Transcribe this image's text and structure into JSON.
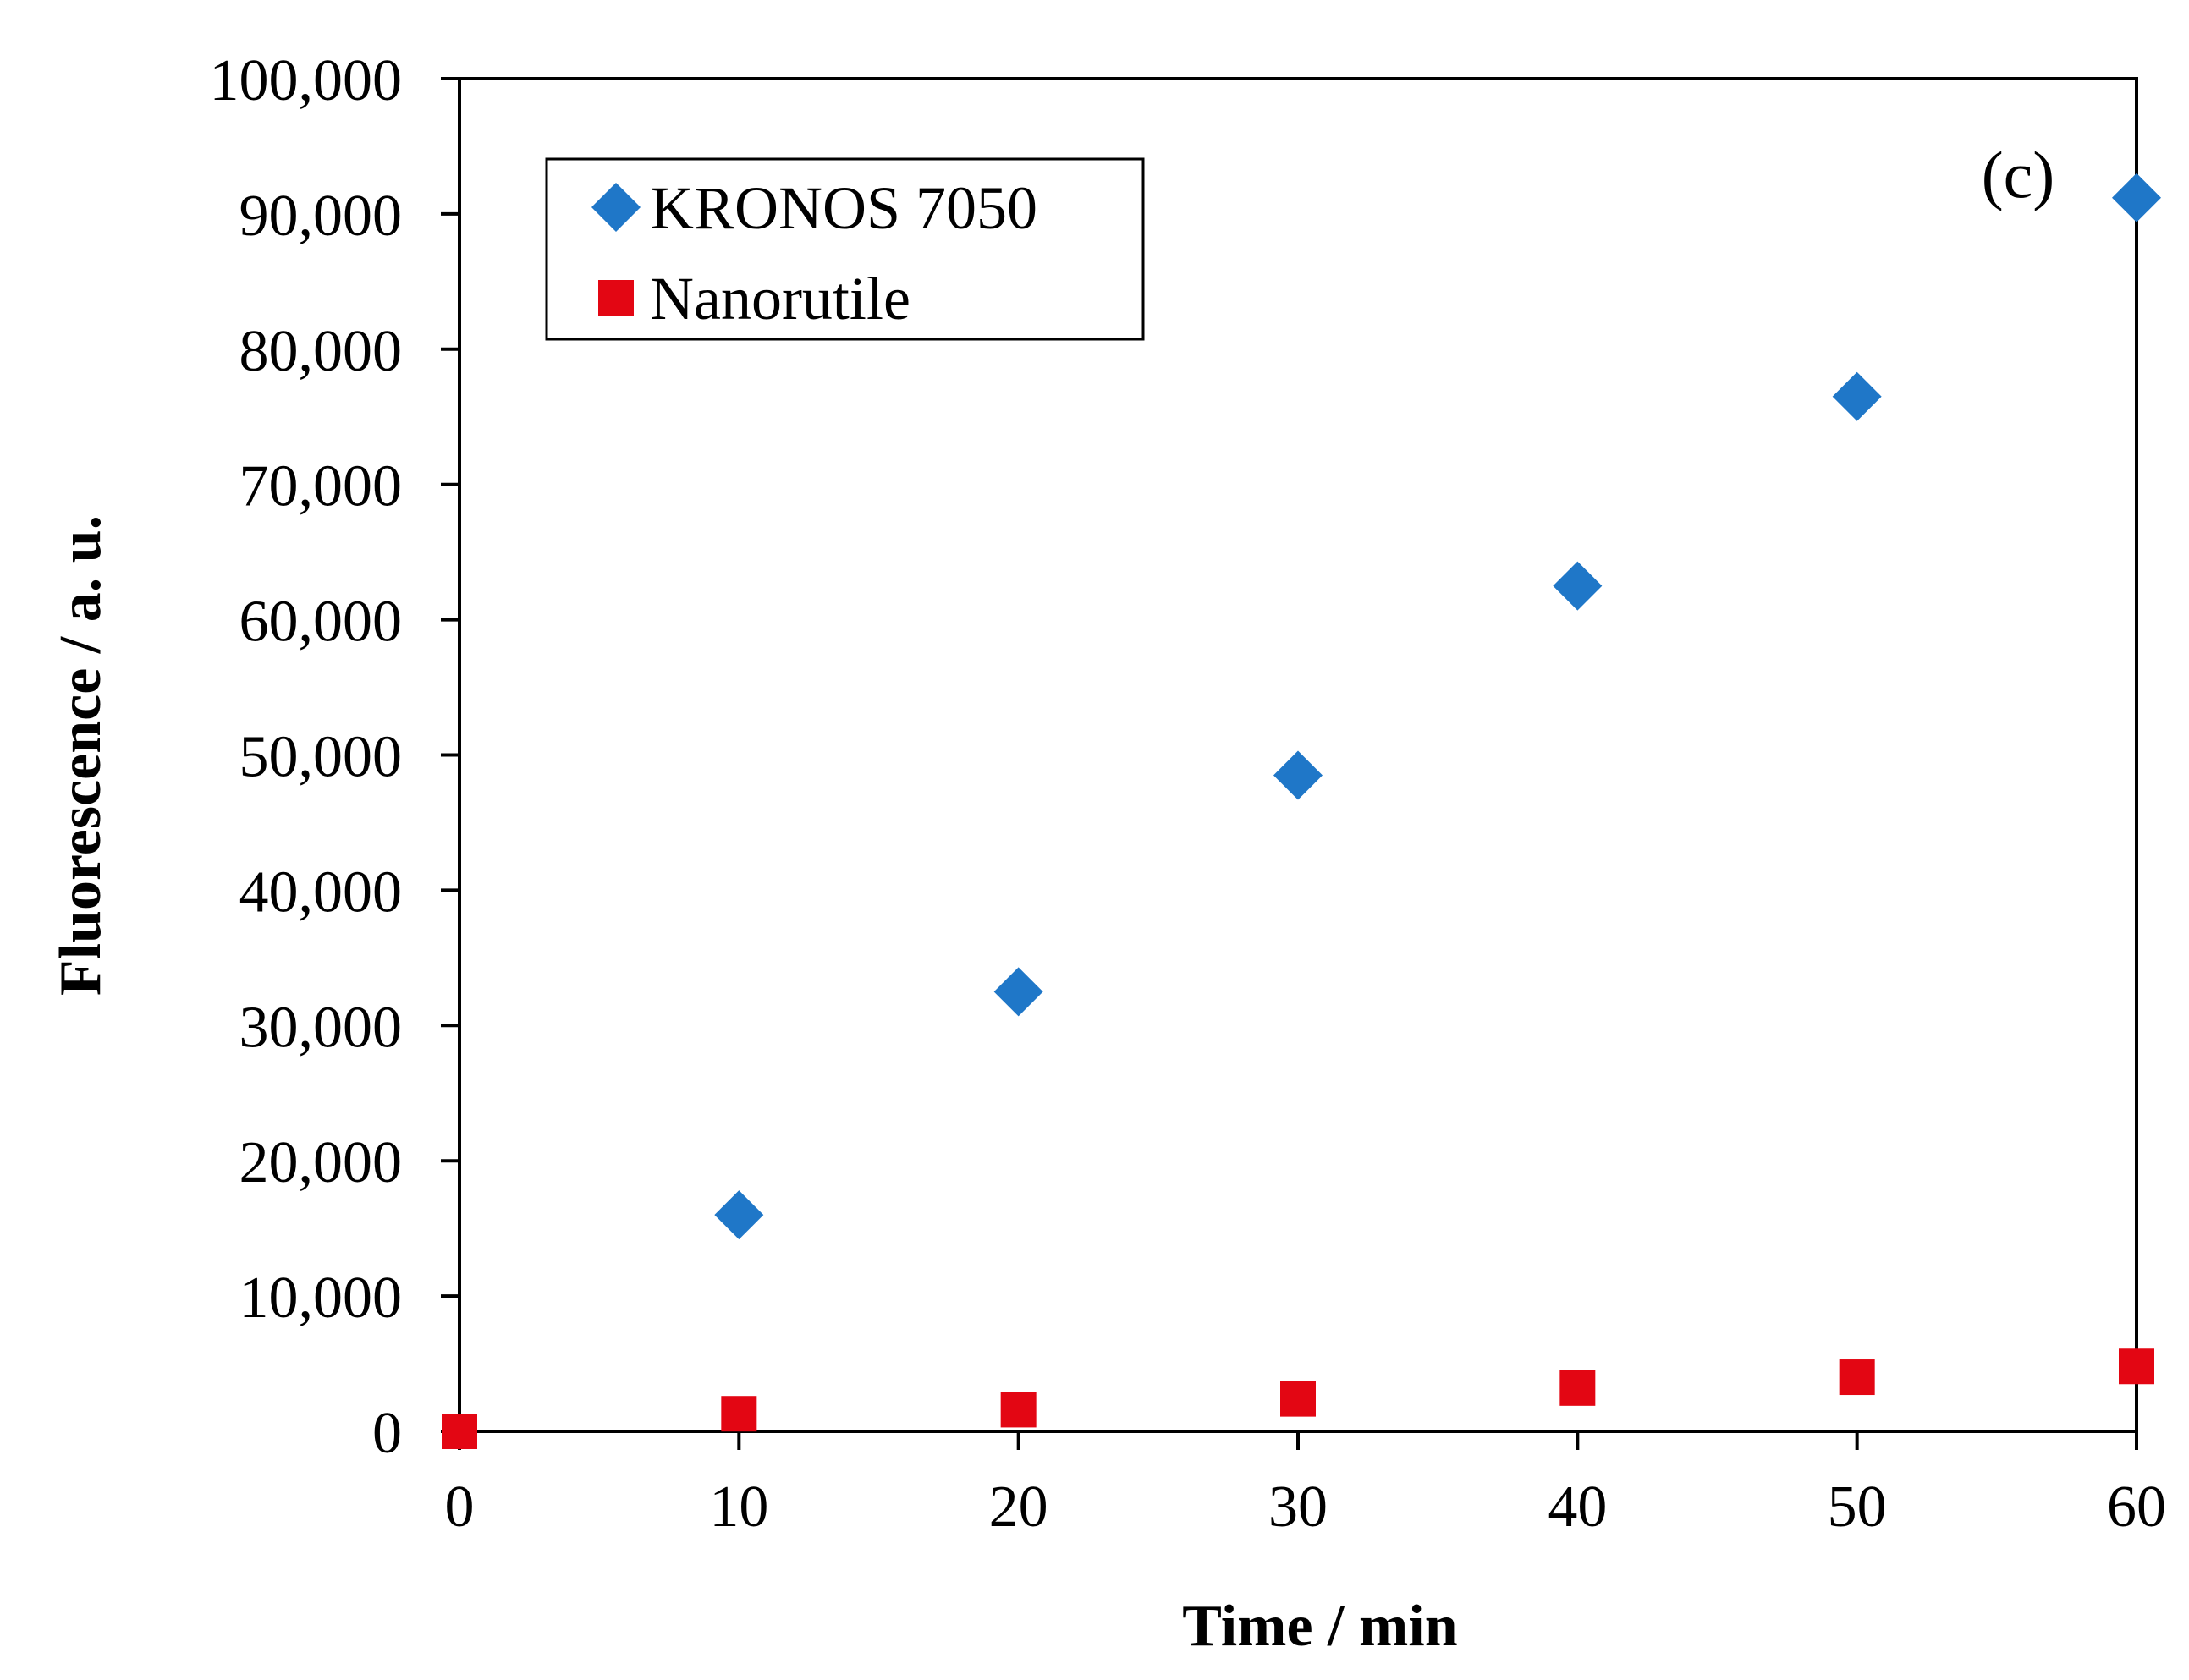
{
  "chart_data": {
    "type": "scatter",
    "panel_label": "(c)",
    "xlabel": "Time / min",
    "ylabel": "Fluorescence / a. u.",
    "xlim": [
      0,
      60
    ],
    "ylim": [
      0,
      100000
    ],
    "x_ticks": [
      0,
      10,
      20,
      30,
      40,
      50,
      60
    ],
    "x_tick_labels": [
      "0",
      "10",
      "20",
      "30",
      "40",
      "50",
      "60"
    ],
    "y_ticks": [
      0,
      10000,
      20000,
      30000,
      40000,
      50000,
      60000,
      70000,
      80000,
      90000,
      100000
    ],
    "y_tick_labels": [
      "0",
      "10,000",
      "20,000",
      "30,000",
      "40,000",
      "50,000",
      "60,000",
      "70,000",
      "80,000",
      "90,000",
      "100,000"
    ],
    "grid": false,
    "legend_position": "top-left",
    "series": [
      {
        "name": "KRONOS 7050",
        "marker": "diamond",
        "color": "#1f77c8",
        "x": [
          10,
          20,
          30,
          40,
          50,
          60
        ],
        "y": [
          16000,
          32500,
          48500,
          62500,
          76500,
          91200
        ]
      },
      {
        "name": "Nanorutile",
        "marker": "square",
        "color": "#e30613",
        "x": [
          0,
          10,
          20,
          30,
          40,
          50,
          60
        ],
        "y": [
          0,
          1300,
          1600,
          2400,
          3200,
          4000,
          4800
        ]
      }
    ]
  }
}
